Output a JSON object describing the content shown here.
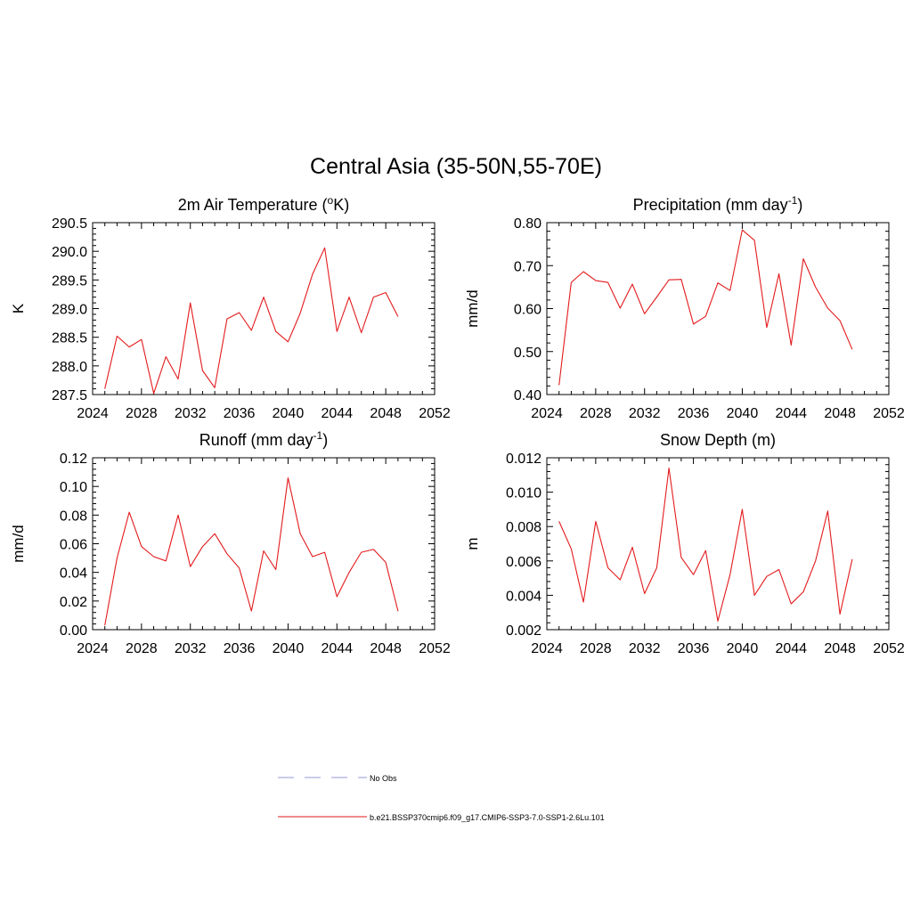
{
  "title": "Central Asia (35-50N,55-70E)",
  "legend": {
    "items": [
      {
        "label": "No Obs",
        "color": "#9999dd",
        "dash": true
      },
      {
        "label": "b.e21.BSSP370cmip6.f09_g17.CMIP6-SSP3-7.0-SSP1-2.6Lu.101",
        "color": "#e31a1c",
        "dash": false
      }
    ]
  },
  "chart_data": [
    {
      "type": "line",
      "title": "2m Air Temperature (",
      "title_super": "o",
      "title_suffix": "K)",
      "ylabel": "K",
      "xlim": [
        2024,
        2052
      ],
      "ylim": [
        287.5,
        290.5
      ],
      "xticks": [
        "2024",
        "2028",
        "2032",
        "2036",
        "2040",
        "2044",
        "2048",
        "2052"
      ],
      "yticks": [
        "287.5",
        "288.0",
        "288.5",
        "289.0",
        "289.5",
        "290.0",
        "290.5"
      ],
      "grid": false,
      "series": [
        {
          "color": "#e31a1c",
          "x": [
            2025,
            2026,
            2027,
            2028,
            2029,
            2030,
            2031,
            2032,
            2033,
            2034,
            2035,
            2036,
            2037,
            2038,
            2039,
            2040,
            2041,
            2042,
            2043,
            2044,
            2045,
            2046,
            2047,
            2048,
            2049
          ],
          "values": [
            287.6,
            288.52,
            288.33,
            288.46,
            287.52,
            288.16,
            287.77,
            289.1,
            287.92,
            287.62,
            288.82,
            288.93,
            288.62,
            289.2,
            288.6,
            288.42,
            288.92,
            289.6,
            290.06,
            288.6,
            289.2,
            288.58,
            289.2,
            289.28,
            288.86
          ]
        }
      ]
    },
    {
      "type": "line",
      "title": "Precipitation (mm day",
      "title_super": "-1",
      "title_suffix": ")",
      "ylabel": "mm/d",
      "xlim": [
        2024,
        2052
      ],
      "ylim": [
        0.4,
        0.8
      ],
      "xticks": [
        "2024",
        "2028",
        "2032",
        "2036",
        "2040",
        "2044",
        "2048",
        "2052"
      ],
      "yticks": [
        "0.40",
        "0.50",
        "0.60",
        "0.70",
        "0.80"
      ],
      "grid": false,
      "series": [
        {
          "color": "#e31a1c",
          "x": [
            2025,
            2026,
            2027,
            2028,
            2029,
            2030,
            2031,
            2032,
            2033,
            2034,
            2035,
            2036,
            2037,
            2038,
            2039,
            2040,
            2041,
            2042,
            2043,
            2044,
            2045,
            2046,
            2047,
            2048,
            2049
          ],
          "values": [
            0.422,
            0.661,
            0.686,
            0.665,
            0.661,
            0.601,
            0.657,
            0.588,
            0.627,
            0.667,
            0.668,
            0.564,
            0.582,
            0.66,
            0.642,
            0.783,
            0.759,
            0.556,
            0.681,
            0.515,
            0.716,
            0.65,
            0.601,
            0.572,
            0.505
          ]
        }
      ]
    },
    {
      "type": "line",
      "title": "Runoff (mm day",
      "title_super": "-1",
      "title_suffix": ")",
      "ylabel": "mm/d",
      "xlim": [
        2024,
        2052
      ],
      "ylim": [
        0.0,
        0.12
      ],
      "xticks": [
        "2024",
        "2028",
        "2032",
        "2036",
        "2040",
        "2044",
        "2048",
        "2052"
      ],
      "yticks": [
        "0.00",
        "0.02",
        "0.04",
        "0.06",
        "0.08",
        "0.10",
        "0.12"
      ],
      "grid": false,
      "series": [
        {
          "color": "#e31a1c",
          "x": [
            2025,
            2026,
            2027,
            2028,
            2029,
            2030,
            2031,
            2032,
            2033,
            2034,
            2035,
            2036,
            2037,
            2038,
            2039,
            2040,
            2041,
            2042,
            2043,
            2044,
            2045,
            2046,
            2047,
            2048,
            2049
          ],
          "values": [
            0.003,
            0.05,
            0.082,
            0.058,
            0.051,
            0.048,
            0.08,
            0.044,
            0.058,
            0.067,
            0.053,
            0.043,
            0.013,
            0.055,
            0.042,
            0.106,
            0.067,
            0.051,
            0.054,
            0.023,
            0.04,
            0.054,
            0.056,
            0.047,
            0.013
          ]
        }
      ]
    },
    {
      "type": "line",
      "title": "Snow Depth (m)",
      "title_super": "",
      "title_suffix": "",
      "ylabel": "m",
      "xlim": [
        2024,
        2052
      ],
      "ylim": [
        0.002,
        0.012
      ],
      "xticks": [
        "2024",
        "2028",
        "2032",
        "2036",
        "2040",
        "2044",
        "2048",
        "2052"
      ],
      "yticks": [
        "0.002",
        "0.004",
        "0.006",
        "0.008",
        "0.010",
        "0.012"
      ],
      "grid": false,
      "series": [
        {
          "color": "#e31a1c",
          "x": [
            2025,
            2026,
            2027,
            2028,
            2029,
            2030,
            2031,
            2032,
            2033,
            2034,
            2035,
            2036,
            2037,
            2038,
            2039,
            2040,
            2041,
            2042,
            2043,
            2044,
            2045,
            2046,
            2047,
            2048,
            2049
          ],
          "values": [
            0.0083,
            0.0067,
            0.0036,
            0.0083,
            0.0056,
            0.0049,
            0.0068,
            0.0041,
            0.0056,
            0.0114,
            0.0062,
            0.0052,
            0.0066,
            0.0025,
            0.0052,
            0.009,
            0.004,
            0.0051,
            0.0055,
            0.0035,
            0.0042,
            0.006,
            0.0089,
            0.0029,
            0.0061
          ]
        }
      ]
    }
  ]
}
